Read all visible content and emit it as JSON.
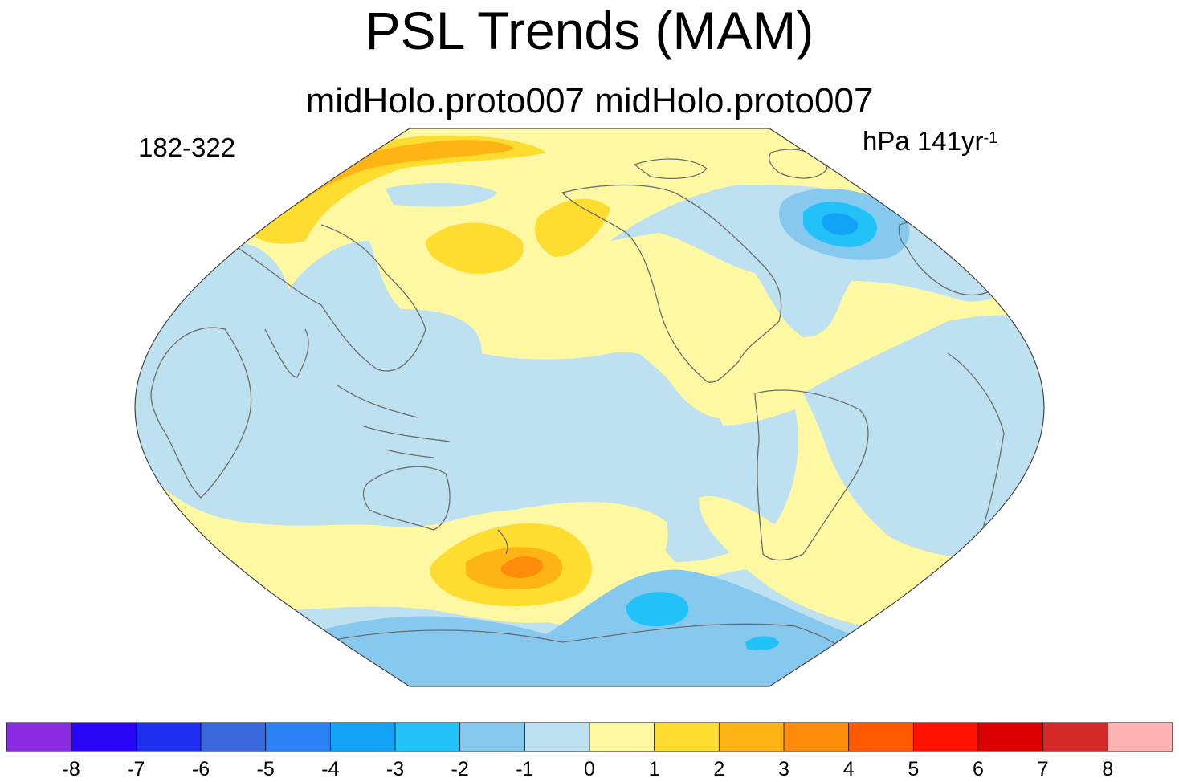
{
  "title": "PSL Trends (MAM)",
  "subtitle": "midHolo.proto007  midHolo.proto007",
  "left_label": "182-322",
  "units": {
    "base": "hPa 141yr",
    "exponent": "-1"
  },
  "projection": "Robinson, centered on the Pacific",
  "colorbar": {
    "bins": [
      {
        "color": "#8a2be2"
      },
      {
        "color": "#2a05f5"
      },
      {
        "color": "#1e2ff0"
      },
      {
        "color": "#3a67dc"
      },
      {
        "color": "#2b82f5"
      },
      {
        "color": "#12a3f7"
      },
      {
        "color": "#22c2f8"
      },
      {
        "color": "#87c9ee"
      },
      {
        "color": "#bde1f1"
      },
      {
        "color": "#fff8a3"
      },
      {
        "color": "#ffdc30"
      },
      {
        "color": "#ffb416"
      },
      {
        "color": "#ff8c0a"
      },
      {
        "color": "#ff5a00"
      },
      {
        "color": "#ff1200"
      },
      {
        "color": "#dc0000"
      },
      {
        "color": "#d42a2a"
      },
      {
        "color": "#ffb3b3"
      }
    ],
    "ticks": [
      "-8",
      "-7",
      "-6",
      "-5",
      "-4",
      "-3",
      "-2",
      "-1",
      "0",
      "1",
      "2",
      "3",
      "4",
      "5",
      "6",
      "7",
      "8"
    ]
  },
  "colors": {
    "coast": "#6d6d6d",
    "outline": "#444444"
  }
}
